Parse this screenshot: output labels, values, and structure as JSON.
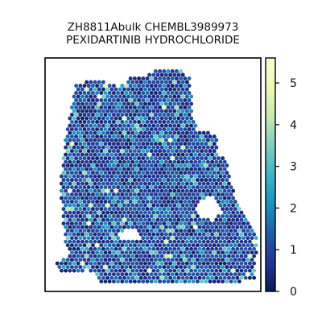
{
  "chart_data": {
    "type": "heatmap",
    "title_lines": [
      "ZH8811Abulk CHEMBL3989973",
      "PEXIDARTINIB HYDROCHLORIDE"
    ],
    "xlabel": "",
    "ylabel": "",
    "axes_ticks_shown": false,
    "grid": false,
    "colorbar": {
      "position": "right",
      "range": [
        0,
        5.6
      ],
      "ticks": [
        0,
        1,
        2,
        3,
        4,
        5
      ],
      "tick_labels": [
        "0",
        "1",
        "2",
        "3",
        "4",
        "5"
      ],
      "colormap": [
        "#081d58",
        "#253494",
        "#225ea8",
        "#1d91c0",
        "#41b6c4",
        "#7fcdbb",
        "#c7e9b4",
        "#edf8b1",
        "#ffffd9"
      ]
    },
    "spot_value_distribution": {
      "typical_range": [
        0.3,
        1.5
      ],
      "max_observed": 5.6
    }
  }
}
